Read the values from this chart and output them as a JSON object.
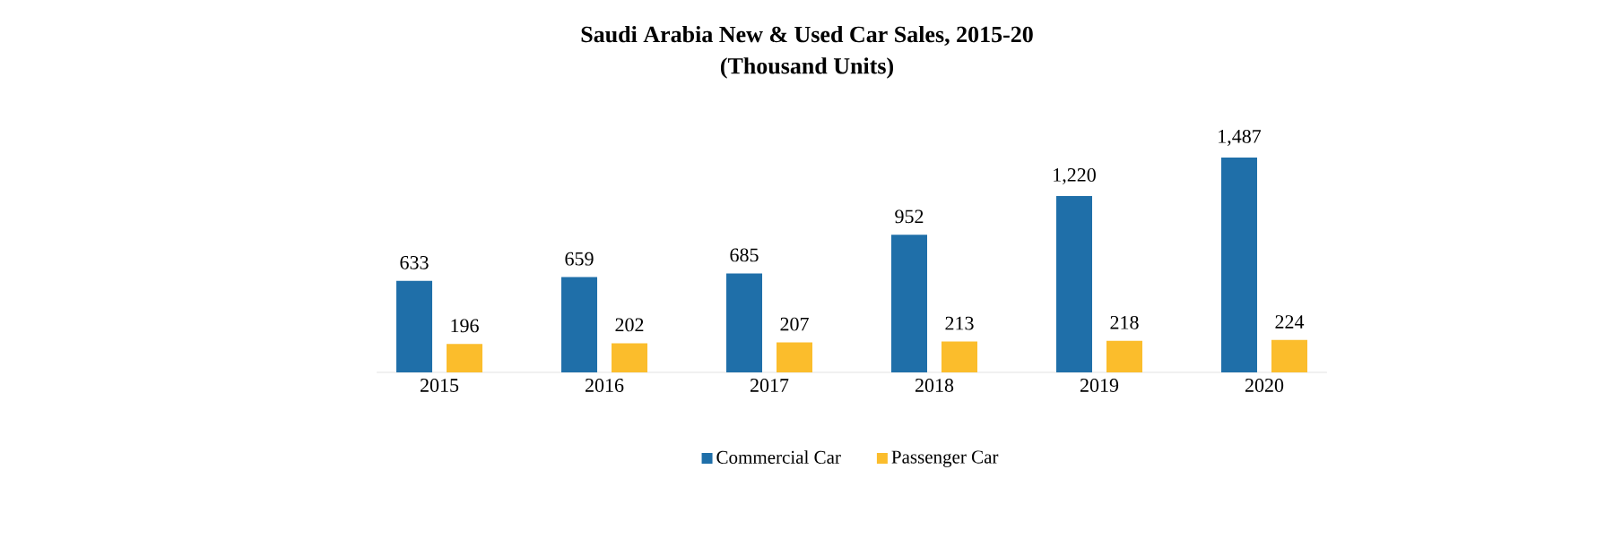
{
  "chart_data": {
    "type": "bar",
    "title": "Saudi Arabia New & Used Car Sales, 2015-20",
    "subtitle": "(Thousand Units)",
    "categories": [
      "2015",
      "2016",
      "2017",
      "2018",
      "2019",
      "2020"
    ],
    "series": [
      {
        "name": "Commercial Car",
        "color": "#1f6fa9",
        "values": [
          633,
          659,
          685,
          952,
          1220,
          1487
        ],
        "value_labels": [
          "633",
          "659",
          "685",
          "952",
          "1,220",
          "1,487"
        ]
      },
      {
        "name": "Passenger Car",
        "color": "#fbbd2c",
        "values": [
          196,
          202,
          207,
          213,
          218,
          224
        ],
        "value_labels": [
          "196",
          "202",
          "207",
          "213",
          "218",
          "224"
        ]
      }
    ],
    "legend": "bottom"
  }
}
